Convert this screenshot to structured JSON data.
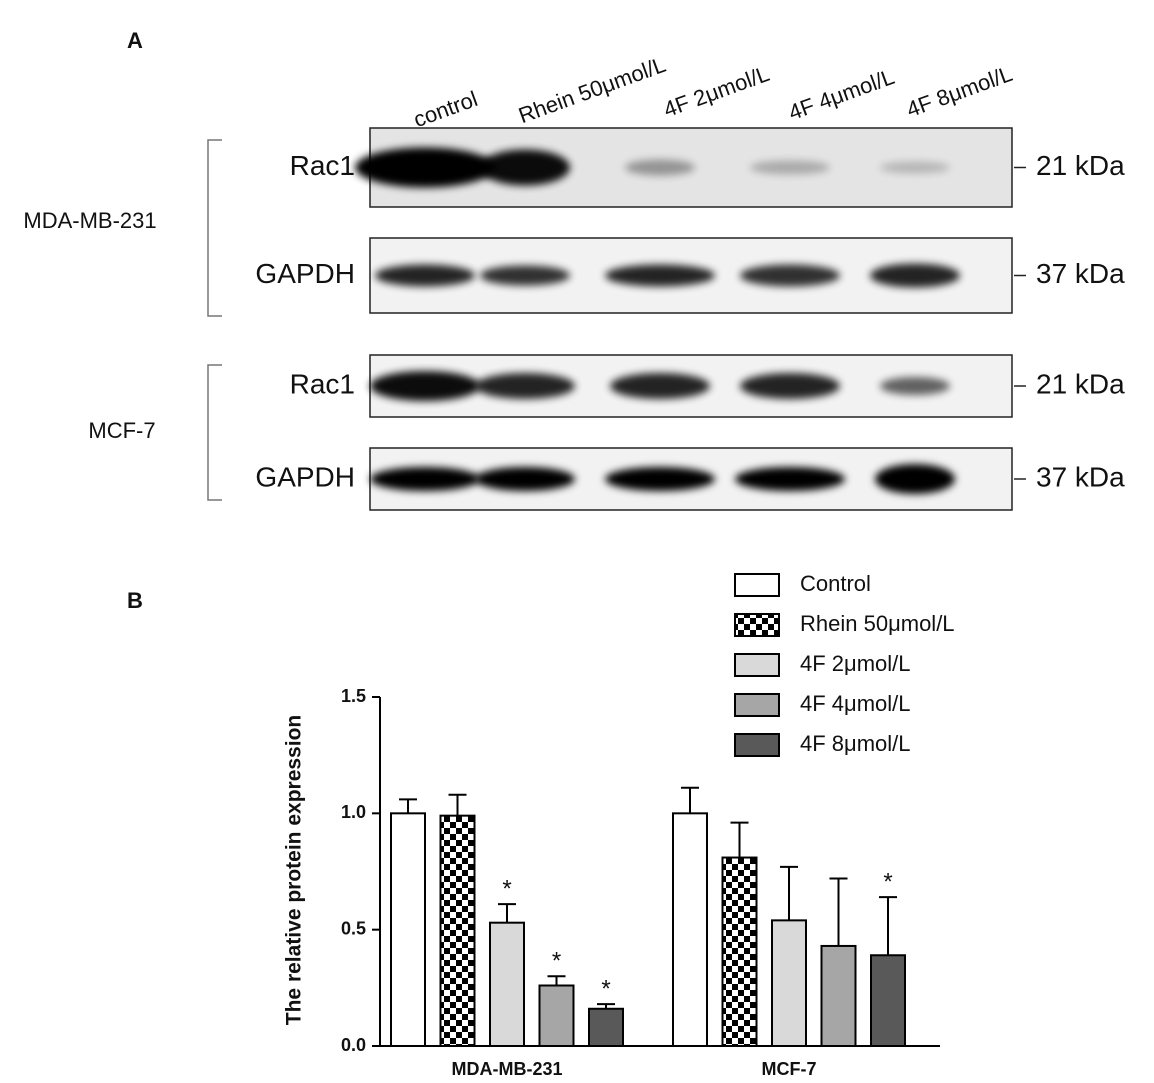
{
  "panel_a": {
    "label": "A",
    "lanes": [
      "control",
      "Rhein 50μmol/L",
      "4F 2μmol/L",
      "4F 4μmol/L",
      "4F 8μmol/L"
    ],
    "cell_lines": [
      {
        "name": "MDA-MB-231",
        "blots": [
          {
            "protein": "Rac1",
            "size": "21 kDa"
          },
          {
            "protein": "GAPDH",
            "size": "37 kDa"
          }
        ]
      },
      {
        "name": "MCF-7",
        "blots": [
          {
            "protein": "Rac1",
            "size": "21 kDa"
          },
          {
            "protein": "GAPDH",
            "size": "37 kDa"
          }
        ]
      }
    ]
  },
  "chart_data": {
    "type": "bar",
    "panel_label": "B",
    "ylabel": "The relative protein expression",
    "categories": [
      "MDA-MB-231",
      "MCF-7"
    ],
    "series": [
      {
        "name": "Control",
        "color": "#ffffff",
        "values": [
          1.0,
          1.0
        ],
        "errors": [
          0.06,
          0.11
        ],
        "significance": [
          null,
          null
        ]
      },
      {
        "name": "Rhein 50μmol/L",
        "color": "#000000",
        "pattern": "checker",
        "values": [
          0.99,
          0.81
        ],
        "errors": [
          0.09,
          0.15
        ],
        "significance": [
          null,
          null
        ]
      },
      {
        "name": "4F 2μmol/L",
        "color": "#d9d9d9",
        "values": [
          0.53,
          0.54
        ],
        "errors": [
          0.08,
          0.23
        ],
        "significance": [
          "*",
          null
        ]
      },
      {
        "name": "4F 4μmol/L",
        "color": "#a6a6a6",
        "values": [
          0.26,
          0.43
        ],
        "errors": [
          0.04,
          0.29
        ],
        "significance": [
          "*",
          null
        ]
      },
      {
        "name": "4F 8μmol/L",
        "color": "#595959",
        "values": [
          0.16,
          0.39
        ],
        "errors": [
          0.02,
          0.25
        ],
        "significance": [
          "*",
          "*"
        ]
      }
    ],
    "ylim": [
      0,
      1.5
    ],
    "yticks": [
      {
        "value": 0,
        "label": "0.0"
      },
      0.5,
      {
        "value": 1,
        "label": "1.0"
      },
      {
        "value": 1.5,
        "label": "1.5"
      }
    ],
    "legend": "upper-right"
  }
}
